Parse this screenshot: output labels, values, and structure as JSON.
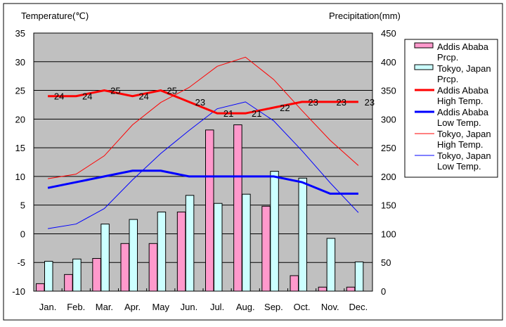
{
  "chart_data": {
    "type": "bar+line",
    "title": "",
    "ylabel_left": "Temperature(℃)",
    "ylabel_right": "Precipitation(mm)",
    "ylim_left": [
      -10,
      35
    ],
    "ylim_right": [
      0,
      450
    ],
    "yticks_left": [
      35,
      30,
      25,
      20,
      15,
      10,
      5,
      0,
      -5,
      -10
    ],
    "yticks_right": [
      450,
      400,
      350,
      300,
      250,
      200,
      150,
      100,
      50,
      0
    ],
    "categories": [
      "Jan.",
      "Feb.",
      "Mar.",
      "Apr.",
      "May",
      "Jun.",
      "Jul.",
      "Aug.",
      "Sep.",
      "Oct.",
      "Nov.",
      "Dec."
    ],
    "grid": true,
    "legend_position": "right",
    "series": [
      {
        "name": "Addis Ababa Prcp.",
        "legend": [
          "Addis Ababa",
          "Prcp."
        ],
        "type": "bar",
        "axis": "right",
        "color": "#ff99cc",
        "values": [
          13,
          29,
          57,
          83,
          83,
          138,
          281,
          290,
          148,
          27,
          7,
          7
        ]
      },
      {
        "name": "Tokyo, Japan Prcp.",
        "legend": [
          "Tokyo, Japan",
          "Prcp."
        ],
        "type": "bar",
        "axis": "right",
        "color": "#ccffff",
        "values": [
          52,
          56,
          117,
          125,
          138,
          167,
          153,
          169,
          209,
          197,
          92,
          51
        ]
      },
      {
        "name": "Addis Ababa High Temp.",
        "legend": [
          "Addis Ababa",
          "High Temp."
        ],
        "type": "line",
        "axis": "left",
        "color": "#ff0000",
        "width": 3,
        "labels": true,
        "values": [
          24,
          24,
          25,
          24,
          25,
          23,
          21,
          21,
          22,
          23,
          23,
          23
        ]
      },
      {
        "name": "Addis Ababa Low Temp.",
        "legend": [
          "Addis Ababa",
          "Low Temp."
        ],
        "type": "line",
        "axis": "left",
        "color": "#0000ff",
        "width": 3,
        "values": [
          8,
          9,
          10,
          11,
          11,
          10,
          10,
          10,
          10,
          9,
          7,
          7
        ]
      },
      {
        "name": "Tokyo, Japan High Temp.",
        "legend": [
          "Tokyo, Japan",
          "High Temp."
        ],
        "type": "line",
        "axis": "left",
        "color": "#ff0000",
        "width": 1,
        "values": [
          9.6,
          10.4,
          13.6,
          19.0,
          22.9,
          25.5,
          29.2,
          30.8,
          26.9,
          21.5,
          16.3,
          11.9
        ]
      },
      {
        "name": "Tokyo, Japan Low Temp.",
        "legend": [
          "Tokyo, Japan",
          "Low Temp."
        ],
        "type": "line",
        "axis": "left",
        "color": "#0000ff",
        "width": 1,
        "values": [
          0.9,
          1.7,
          4.4,
          9.4,
          14.0,
          18.0,
          21.8,
          23.0,
          19.7,
          14.5,
          8.9,
          3.7
        ]
      }
    ]
  }
}
